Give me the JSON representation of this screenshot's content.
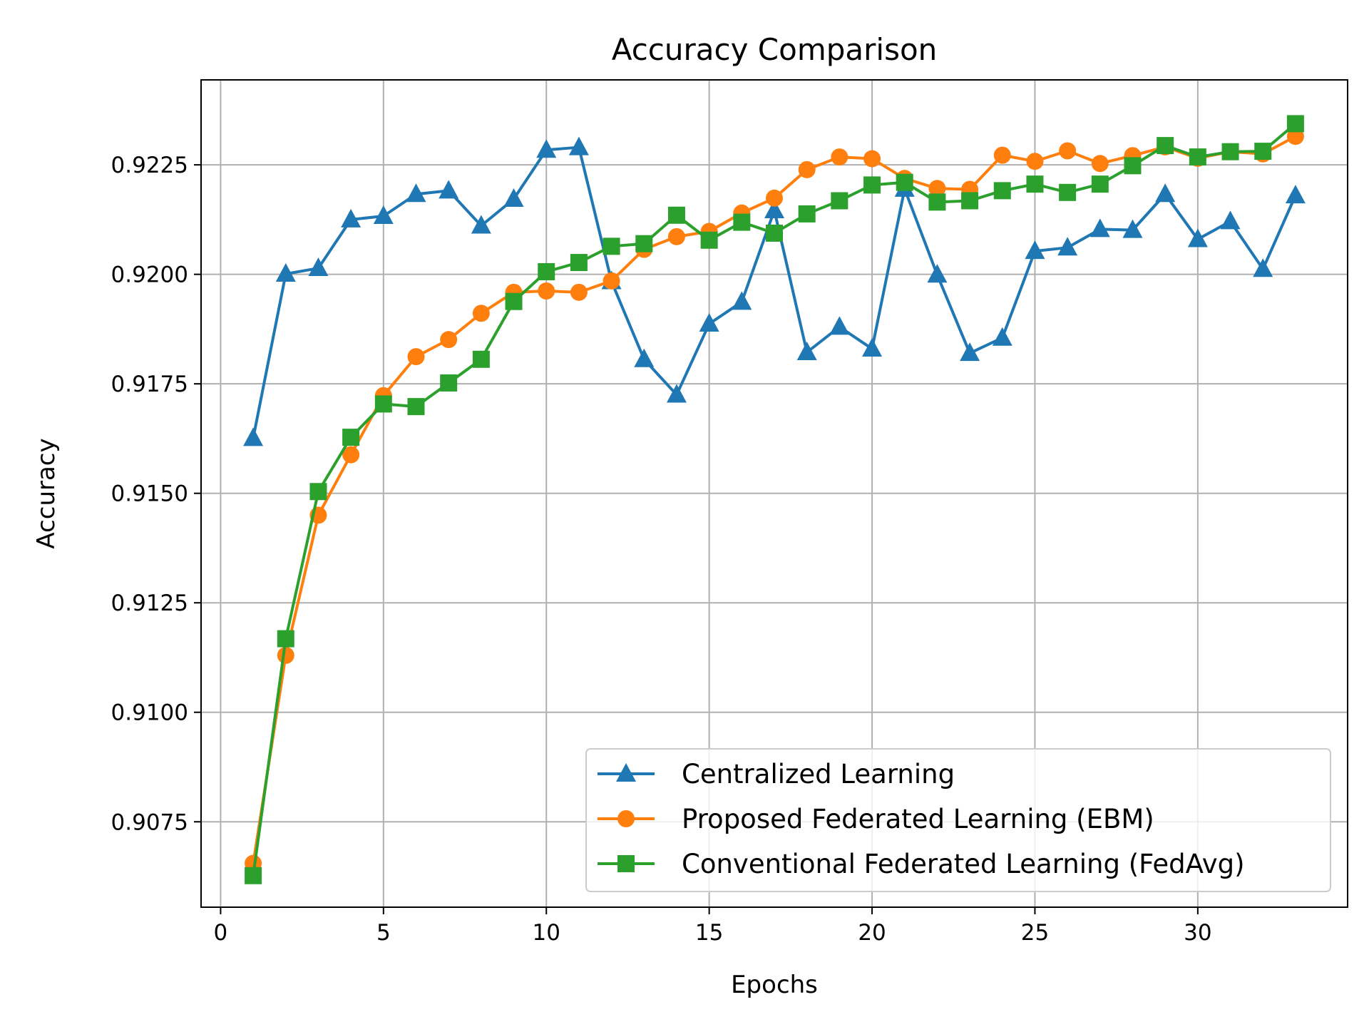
{
  "chart_data": {
    "type": "line",
    "title": "Accuracy Comparison",
    "xlabel": "Epochs",
    "ylabel": "Accuracy",
    "xlim": [
      -0.6,
      34.6
    ],
    "ylim": [
      0.90555,
      0.92444
    ],
    "xticks": [
      0,
      5,
      10,
      15,
      20,
      25,
      30
    ],
    "xtick_labels": [
      "0",
      "5",
      "10",
      "15",
      "20",
      "25",
      "30"
    ],
    "yticks": [
      0.9075,
      0.91,
      0.9125,
      0.915,
      0.9175,
      0.92,
      0.9225
    ],
    "ytick_labels": [
      "0.9075",
      "0.9100",
      "0.9125",
      "0.9150",
      "0.9175",
      "0.9200",
      "0.9225"
    ],
    "grid": true,
    "legend_position": "lower-right",
    "x": [
      1,
      2,
      3,
      4,
      5,
      6,
      7,
      8,
      9,
      10,
      11,
      12,
      13,
      14,
      15,
      16,
      17,
      18,
      19,
      20,
      21,
      22,
      23,
      24,
      25,
      26,
      27,
      28,
      29,
      30,
      31,
      32,
      33
    ],
    "series": [
      {
        "name": "Centralized Learning",
        "color": "#1f77b4",
        "marker": "triangle",
        "values": [
          0.91626,
          0.92001,
          0.92014,
          0.92125,
          0.92133,
          0.92183,
          0.92191,
          0.92111,
          0.92172,
          0.92284,
          0.9229,
          0.91984,
          0.91806,
          0.91725,
          0.91887,
          0.91937,
          0.92146,
          0.91822,
          0.9188,
          0.9183,
          0.92195,
          0.91999,
          0.9182,
          0.91855,
          0.92053,
          0.92061,
          0.92103,
          0.92101,
          0.92183,
          0.9208,
          0.92121,
          0.92012,
          0.9218
        ]
      },
      {
        "name": "Proposed Federated Learning (EBM)",
        "color": "#ff7f0e",
        "marker": "circle",
        "values": [
          0.90655,
          0.9113,
          0.9145,
          0.91588,
          0.91723,
          0.91812,
          0.91851,
          0.91911,
          0.91959,
          0.91962,
          0.91959,
          0.91985,
          0.92057,
          0.92086,
          0.92098,
          0.9214,
          0.92174,
          0.92239,
          0.92268,
          0.92264,
          0.92219,
          0.92196,
          0.92194,
          0.92272,
          0.92258,
          0.92282,
          0.92253,
          0.92271,
          0.92291,
          0.92265,
          0.9228,
          0.92275,
          0.92315
        ]
      },
      {
        "name": "Conventional Federated Learning (FedAvg)",
        "color": "#2ca02c",
        "marker": "square",
        "values": [
          0.90627,
          0.91168,
          0.91504,
          0.91628,
          0.91704,
          0.91698,
          0.91752,
          0.91806,
          0.91938,
          0.92006,
          0.92027,
          0.92064,
          0.9207,
          0.92135,
          0.92078,
          0.92119,
          0.92094,
          0.92138,
          0.92168,
          0.92204,
          0.9221,
          0.92165,
          0.92168,
          0.92191,
          0.92206,
          0.92187,
          0.92206,
          0.92248,
          0.92294,
          0.92268,
          0.9228,
          0.92281,
          0.92344
        ]
      }
    ]
  }
}
